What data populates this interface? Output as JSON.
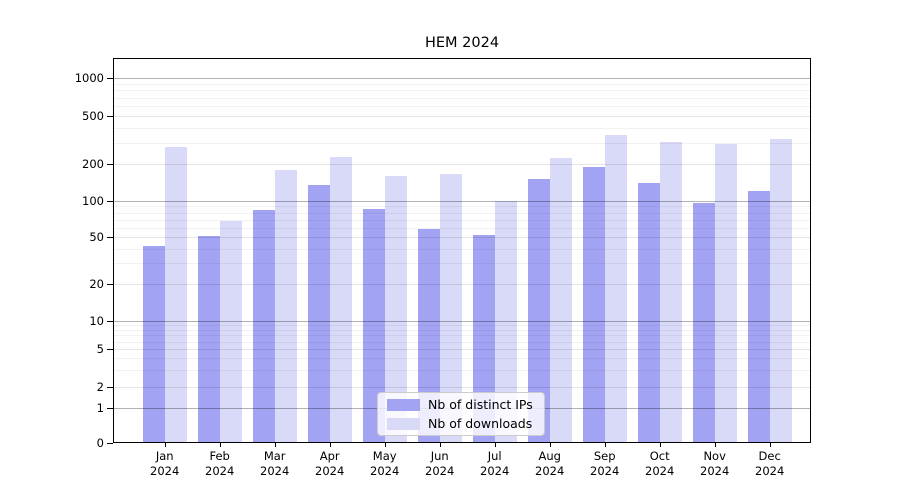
{
  "title": "HEM 2024",
  "legend": {
    "items": [
      {
        "label": "Nb of distinct IPs",
        "color": "#a3a3f3"
      },
      {
        "label": "Nb of downloads",
        "color": "#d9d9f8"
      }
    ]
  },
  "chart_data": {
    "type": "bar",
    "title": "HEM 2024",
    "categories": [
      "Jan 2024",
      "Feb 2024",
      "Mar 2024",
      "Apr 2024",
      "May 2024",
      "Jun 2024",
      "Jul 2024",
      "Aug 2024",
      "Sep 2024",
      "Oct 2024",
      "Nov 2024",
      "Dec 2024"
    ],
    "series": [
      {
        "name": "Nb of distinct IPs",
        "color": "#a3a3f3",
        "values": [
          42,
          51,
          84,
          135,
          86,
          58,
          52,
          150,
          190,
          140,
          97,
          120
        ]
      },
      {
        "name": "Nb of downloads",
        "color": "#d9d9f8",
        "values": [
          275,
          68,
          180,
          230,
          160,
          165,
          100,
          225,
          350,
          305,
          295,
          325
        ]
      }
    ],
    "xlabel": "",
    "ylabel": "",
    "yscale": "symlog",
    "yticks": [
      0,
      1,
      2,
      5,
      10,
      20,
      50,
      100,
      200,
      500,
      1000
    ],
    "minor_yticks": [
      3,
      4,
      6,
      7,
      8,
      9,
      30,
      40,
      60,
      70,
      80,
      90,
      300,
      400,
      600,
      700,
      800,
      900
    ],
    "emphasized_gridlines": [
      1,
      10,
      100,
      1000
    ],
    "ylim": [
      0,
      1400
    ],
    "grid": true,
    "legend_position": "lower center inside plot"
  }
}
